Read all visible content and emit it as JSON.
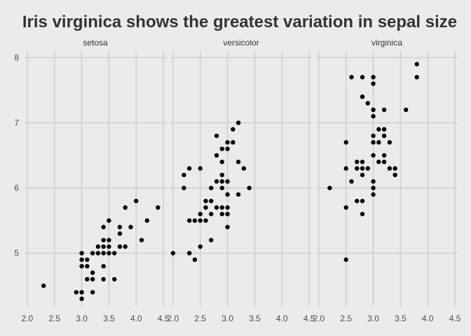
{
  "chart_data": {
    "type": "scatter",
    "title": "Iris virginica shows the greatest variation in sepal size",
    "xlabel": "",
    "ylabel": "",
    "xlim": [
      1.95,
      4.55
    ],
    "ylim": [
      4.18,
      8.1
    ],
    "x_ticks": [
      "2.0",
      "2.5",
      "3.0",
      "3.5",
      "4.0",
      "4.5"
    ],
    "y_ticks": [
      "5",
      "6",
      "7",
      "8"
    ],
    "grid": true,
    "point_color": "#000000",
    "background": "#ebebeb",
    "panels": [
      {
        "name": "setosa",
        "points": [
          [
            2.3,
            4.5
          ],
          [
            2.9,
            4.4
          ],
          [
            3.0,
            4.4
          ],
          [
            3.0,
            4.3
          ],
          [
            3.0,
            4.8
          ],
          [
            3.0,
            4.9
          ],
          [
            3.0,
            5.0
          ],
          [
            3.1,
            4.8
          ],
          [
            3.1,
            4.9
          ],
          [
            3.1,
            4.6
          ],
          [
            3.2,
            4.4
          ],
          [
            3.2,
            4.6
          ],
          [
            3.2,
            4.7
          ],
          [
            3.2,
            5.0
          ],
          [
            3.3,
            5.0
          ],
          [
            3.3,
            5.1
          ],
          [
            3.4,
            4.6
          ],
          [
            3.4,
            4.8
          ],
          [
            3.4,
            5.0
          ],
          [
            3.4,
            5.1
          ],
          [
            3.4,
            5.2
          ],
          [
            3.4,
            5.4
          ],
          [
            3.5,
            5.0
          ],
          [
            3.5,
            5.1
          ],
          [
            3.5,
            5.2
          ],
          [
            3.5,
            5.5
          ],
          [
            3.6,
            4.6
          ],
          [
            3.6,
            5.0
          ],
          [
            3.7,
            5.1
          ],
          [
            3.7,
            5.3
          ],
          [
            3.7,
            5.4
          ],
          [
            3.8,
            5.1
          ],
          [
            3.8,
            5.7
          ],
          [
            3.9,
            5.4
          ],
          [
            4.0,
            5.8
          ],
          [
            4.1,
            5.2
          ],
          [
            4.2,
            5.5
          ],
          [
            4.4,
            5.7
          ]
        ]
      },
      {
        "name": "versicolor",
        "points": [
          [
            2.0,
            5.0
          ],
          [
            2.2,
            6.0
          ],
          [
            2.2,
            6.2
          ],
          [
            2.3,
            5.5
          ],
          [
            2.3,
            6.3
          ],
          [
            2.3,
            5.0
          ],
          [
            2.4,
            4.9
          ],
          [
            2.4,
            5.5
          ],
          [
            2.5,
            5.1
          ],
          [
            2.5,
            5.5
          ],
          [
            2.5,
            5.6
          ],
          [
            2.5,
            6.3
          ],
          [
            2.6,
            5.5
          ],
          [
            2.6,
            5.7
          ],
          [
            2.6,
            5.8
          ],
          [
            2.7,
            5.2
          ],
          [
            2.7,
            5.6
          ],
          [
            2.7,
            5.8
          ],
          [
            2.7,
            6.0
          ],
          [
            2.8,
            5.7
          ],
          [
            2.8,
            6.1
          ],
          [
            2.8,
            6.5
          ],
          [
            2.8,
            6.8
          ],
          [
            2.9,
            5.6
          ],
          [
            2.9,
            5.7
          ],
          [
            2.9,
            6.0
          ],
          [
            2.9,
            6.1
          ],
          [
            2.9,
            6.2
          ],
          [
            2.9,
            6.4
          ],
          [
            2.9,
            6.6
          ],
          [
            3.0,
            5.4
          ],
          [
            3.0,
            5.6
          ],
          [
            3.0,
            5.7
          ],
          [
            3.0,
            5.9
          ],
          [
            3.0,
            6.1
          ],
          [
            3.0,
            6.6
          ],
          [
            3.0,
            6.7
          ],
          [
            3.1,
            6.7
          ],
          [
            3.1,
            6.9
          ],
          [
            3.2,
            5.9
          ],
          [
            3.2,
            6.4
          ],
          [
            3.2,
            7.0
          ],
          [
            3.3,
            6.3
          ],
          [
            3.4,
            6.0
          ]
        ]
      },
      {
        "name": "virginica",
        "points": [
          [
            2.2,
            6.0
          ],
          [
            2.5,
            4.9
          ],
          [
            2.5,
            5.7
          ],
          [
            2.5,
            6.3
          ],
          [
            2.5,
            6.7
          ],
          [
            2.6,
            6.1
          ],
          [
            2.6,
            7.7
          ],
          [
            2.7,
            5.8
          ],
          [
            2.7,
            6.3
          ],
          [
            2.7,
            6.4
          ],
          [
            2.8,
            5.6
          ],
          [
            2.8,
            5.8
          ],
          [
            2.8,
            6.2
          ],
          [
            2.8,
            6.3
          ],
          [
            2.8,
            6.4
          ],
          [
            2.8,
            7.4
          ],
          [
            2.8,
            7.7
          ],
          [
            2.9,
            6.3
          ],
          [
            2.9,
            7.3
          ],
          [
            3.0,
            5.9
          ],
          [
            3.0,
            6.0
          ],
          [
            3.0,
            6.1
          ],
          [
            3.0,
            6.5
          ],
          [
            3.0,
            6.7
          ],
          [
            3.0,
            6.8
          ],
          [
            3.0,
            7.1
          ],
          [
            3.0,
            7.2
          ],
          [
            3.0,
            7.6
          ],
          [
            3.0,
            7.7
          ],
          [
            3.1,
            6.4
          ],
          [
            3.1,
            6.7
          ],
          [
            3.1,
            6.9
          ],
          [
            3.2,
            6.4
          ],
          [
            3.2,
            6.5
          ],
          [
            3.2,
            6.8
          ],
          [
            3.2,
            6.9
          ],
          [
            3.2,
            7.2
          ],
          [
            3.3,
            6.3
          ],
          [
            3.3,
            6.7
          ],
          [
            3.4,
            6.2
          ],
          [
            3.4,
            6.3
          ],
          [
            3.6,
            7.2
          ],
          [
            3.8,
            7.7
          ],
          [
            3.8,
            7.9
          ]
        ]
      }
    ]
  }
}
